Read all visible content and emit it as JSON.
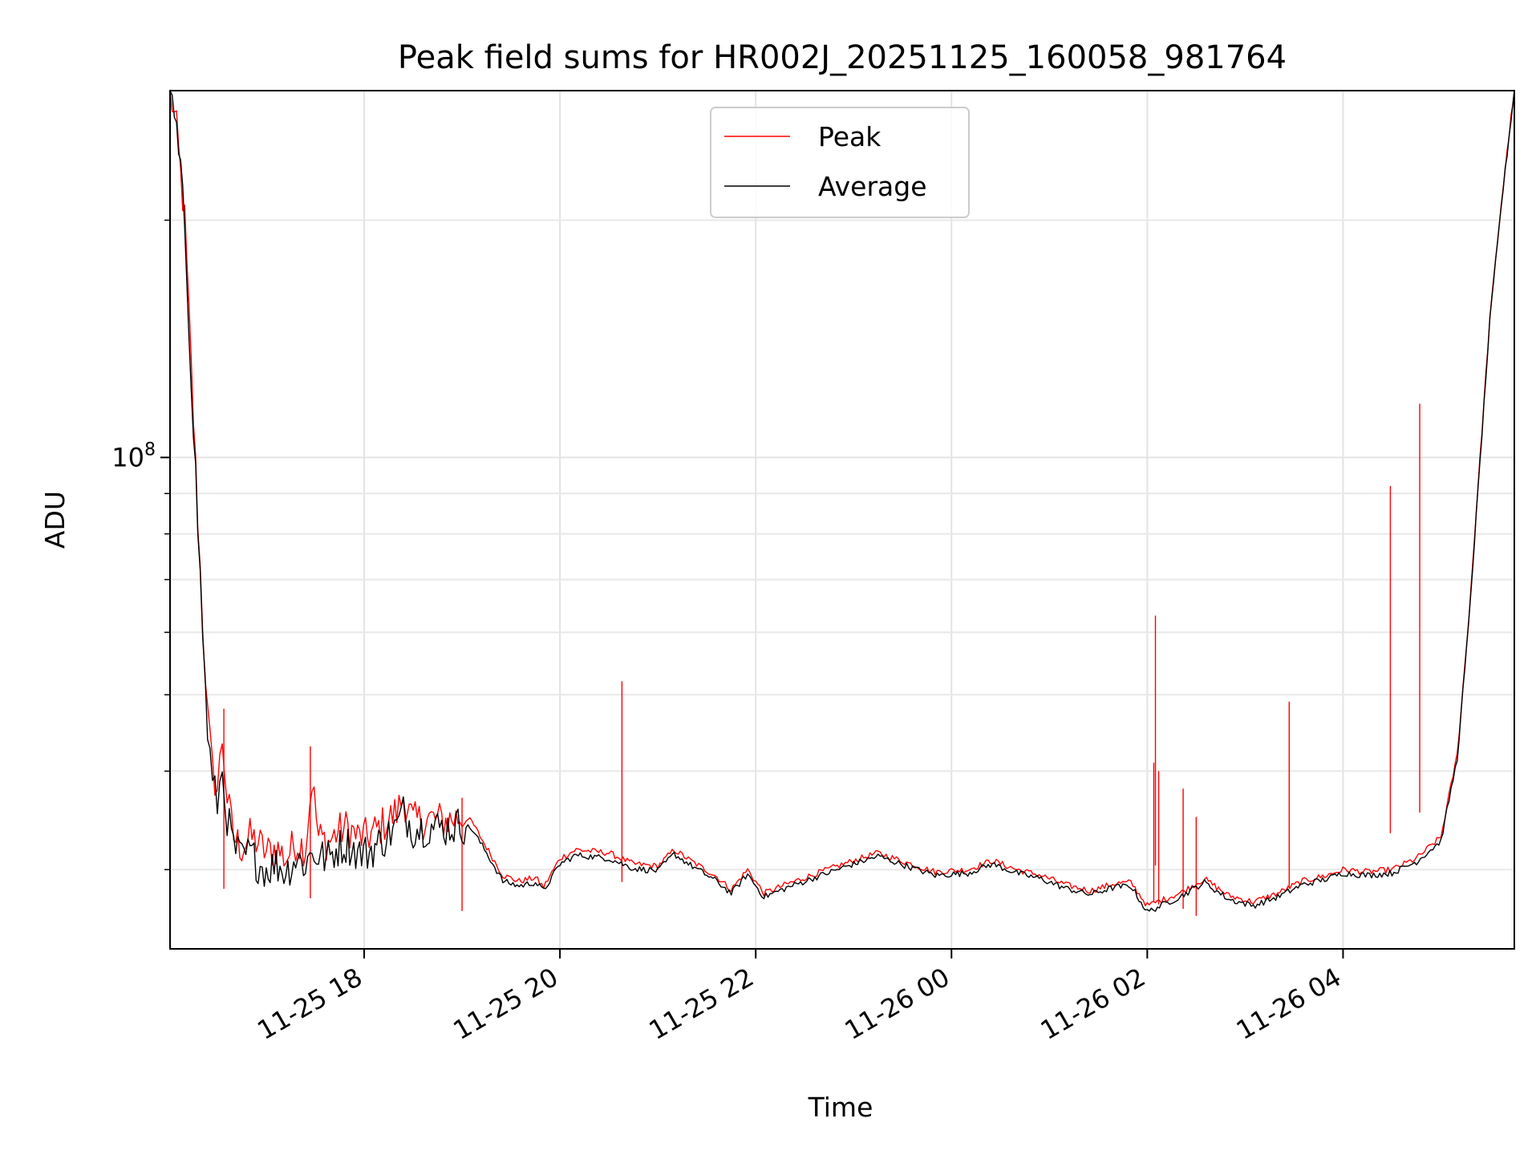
{
  "chart_data": {
    "type": "line",
    "title": "Peak field sums for HR002J_20251125_160058_981764",
    "xlabel": "Time",
    "ylabel": "ADU",
    "y_scale": "log",
    "ylim": [
      23800000,
      292000000
    ],
    "xlim": [
      "2025-11-25 16:01",
      "2025-11-26 05:45"
    ],
    "grid": true,
    "legend_position": "top-center",
    "x_ticks": [
      "11-25 18",
      "11-25 20",
      "11-25 22",
      "11-26 00",
      "11-26 02",
      "11-26 04"
    ],
    "x_tick_times": [
      "2025-11-25 18:00",
      "2025-11-25 20:00",
      "2025-11-25 22:00",
      "2025-11-26 00:00",
      "2025-11-26 02:00",
      "2025-11-26 04:00"
    ],
    "y_major_ticks": [
      {
        "value": 100000000,
        "base": "10",
        "exp": "8"
      }
    ],
    "y_minor_ticks": [
      30000000,
      40000000,
      50000000,
      60000000,
      70000000,
      80000000,
      90000000,
      200000000
    ],
    "colors": {
      "peak": "#ff0000",
      "average": "#000000"
    },
    "series": [
      {
        "name": "Peak",
        "color": "#ff0000",
        "points": [
          [
            "2025-11-25 16:01",
            292000000
          ],
          [
            "2025-11-25 16:05",
            260000000
          ],
          [
            "2025-11-25 16:10",
            200000000
          ],
          [
            "2025-11-25 16:14",
            130000000
          ],
          [
            "2025-11-25 16:18",
            84000000
          ],
          [
            "2025-11-25 16:21",
            62000000
          ],
          [
            "2025-11-25 16:24",
            47000000
          ],
          [
            "2025-11-25 16:27",
            40000000
          ],
          [
            "2025-11-25 16:30",
            38000000
          ],
          [
            "2025-11-25 16:33",
            44000000
          ],
          [
            "2025-11-25 16:36",
            37000000
          ],
          [
            "2025-11-25 16:40",
            33000000
          ],
          [
            "2025-11-25 16:45",
            32000000
          ],
          [
            "2025-11-25 16:50",
            33000000
          ],
          [
            "2025-11-25 16:55",
            32500000
          ],
          [
            "2025-11-25 17:00",
            31500000
          ],
          [
            "2025-11-25 17:06",
            32000000
          ],
          [
            "2025-11-25 17:12",
            31000000
          ],
          [
            "2025-11-25 17:18",
            32500000
          ],
          [
            "2025-11-25 17:24",
            32000000
          ],
          [
            "2025-11-25 17:28",
            39000000
          ],
          [
            "2025-11-25 17:32",
            33000000
          ],
          [
            "2025-11-25 17:38",
            32500000
          ],
          [
            "2025-11-25 17:44",
            33500000
          ],
          [
            "2025-11-25 17:50",
            34000000
          ],
          [
            "2025-11-25 17:56",
            33000000
          ],
          [
            "2025-11-25 18:02",
            33000000
          ],
          [
            "2025-11-25 18:10",
            34000000
          ],
          [
            "2025-11-25 18:20",
            35500000
          ],
          [
            "2025-11-25 18:24",
            37000000
          ],
          [
            "2025-11-25 18:30",
            34500000
          ],
          [
            "2025-11-25 18:40",
            34800000
          ],
          [
            "2025-11-25 18:50",
            34600000
          ],
          [
            "2025-11-25 19:00",
            35000000
          ],
          [
            "2025-11-25 19:06",
            34500000
          ],
          [
            "2025-11-25 19:15",
            32000000
          ],
          [
            "2025-11-25 19:25",
            29500000
          ],
          [
            "2025-11-25 19:35",
            29000000
          ],
          [
            "2025-11-25 19:45",
            29300000
          ],
          [
            "2025-11-25 19:50",
            28500000
          ],
          [
            "2025-11-25 20:00",
            31000000
          ],
          [
            "2025-11-25 20:10",
            31800000
          ],
          [
            "2025-11-25 20:30",
            31500000
          ],
          [
            "2025-11-25 20:45",
            30500000
          ],
          [
            "2025-11-25 21:00",
            30300000
          ],
          [
            "2025-11-25 21:10",
            31800000
          ],
          [
            "2025-11-25 21:20",
            30800000
          ],
          [
            "2025-11-25 21:35",
            29500000
          ],
          [
            "2025-11-25 21:45",
            28300000
          ],
          [
            "2025-11-25 21:55",
            30000000
          ],
          [
            "2025-11-25 22:05",
            28000000
          ],
          [
            "2025-11-25 22:20",
            28800000
          ],
          [
            "2025-11-25 22:40",
            29800000
          ],
          [
            "2025-11-25 23:00",
            30800000
          ],
          [
            "2025-11-25 23:15",
            31500000
          ],
          [
            "2025-11-25 23:35",
            30500000
          ],
          [
            "2025-11-25 23:50",
            29800000
          ],
          [
            "2025-11-26 00:10",
            30000000
          ],
          [
            "2025-11-26 00:25",
            30800000
          ],
          [
            "2025-11-26 00:40",
            30000000
          ],
          [
            "2025-11-26 00:55",
            29500000
          ],
          [
            "2025-11-26 01:10",
            28700000
          ],
          [
            "2025-11-26 01:25",
            28200000
          ],
          [
            "2025-11-26 01:40",
            28800000
          ],
          [
            "2025-11-26 01:50",
            28900000
          ],
          [
            "2025-11-26 02:00",
            27000000
          ],
          [
            "2025-11-26 02:20",
            28000000
          ],
          [
            "2025-11-26 02:35",
            29200000
          ],
          [
            "2025-11-26 02:50",
            27800000
          ],
          [
            "2025-11-26 03:05",
            27300000
          ],
          [
            "2025-11-26 03:20",
            28000000
          ],
          [
            "2025-11-26 03:35",
            29000000
          ],
          [
            "2025-11-26 03:50",
            29500000
          ],
          [
            "2025-11-26 04:00",
            30000000
          ],
          [
            "2025-11-26 04:15",
            29800000
          ],
          [
            "2025-11-26 04:30",
            30000000
          ],
          [
            "2025-11-26 04:45",
            31000000
          ],
          [
            "2025-11-26 05:00",
            33000000
          ],
          [
            "2025-11-26 05:10",
            42000000
          ],
          [
            "2025-11-26 05:17",
            62000000
          ],
          [
            "2025-11-26 05:24",
            100000000
          ],
          [
            "2025-11-26 05:30",
            150000000
          ],
          [
            "2025-11-26 05:37",
            210000000
          ],
          [
            "2025-11-26 05:43",
            270000000
          ],
          [
            "2025-11-26 05:45",
            292000000
          ]
        ],
        "spikes": [
          [
            "2025-11-25 16:34",
            48000000
          ],
          [
            "2025-11-25 17:27",
            43000000
          ],
          [
            "2025-11-25 19:00",
            37000000
          ],
          [
            "2025-11-25 20:38",
            52000000
          ],
          [
            "2025-11-26 02:04",
            41000000
          ],
          [
            "2025-11-26 02:05",
            63000000
          ],
          [
            "2025-11-26 02:07",
            40000000
          ],
          [
            "2025-11-26 02:22",
            38000000
          ],
          [
            "2025-11-26 02:30",
            35000000
          ],
          [
            "2025-11-26 03:27",
            49000000
          ],
          [
            "2025-11-26 04:29",
            92000000
          ],
          [
            "2025-11-26 04:47",
            117000000
          ]
        ]
      },
      {
        "name": "Average",
        "color": "#000000",
        "points": [
          [
            "2025-11-25 16:01",
            292000000
          ],
          [
            "2025-11-25 16:05",
            258000000
          ],
          [
            "2025-11-25 16:10",
            198000000
          ],
          [
            "2025-11-25 16:14",
            128000000
          ],
          [
            "2025-11-25 16:18",
            82000000
          ],
          [
            "2025-11-25 16:21",
            60000000
          ],
          [
            "2025-11-25 16:24",
            45000000
          ],
          [
            "2025-11-25 16:27",
            38500000
          ],
          [
            "2025-11-25 16:30",
            36500000
          ],
          [
            "2025-11-25 16:33",
            40000000
          ],
          [
            "2025-11-25 16:36",
            35000000
          ],
          [
            "2025-11-25 16:40",
            32000000
          ],
          [
            "2025-11-25 16:45",
            31000000
          ],
          [
            "2025-11-25 16:50",
            31500000
          ],
          [
            "2025-11-25 16:55",
            30500000
          ],
          [
            "2025-11-25 17:00",
            30000000
          ],
          [
            "2025-11-25 17:06",
            30500000
          ],
          [
            "2025-11-25 17:12",
            29800000
          ],
          [
            "2025-11-25 17:18",
            31000000
          ],
          [
            "2025-11-25 17:24",
            30500000
          ],
          [
            "2025-11-25 17:28",
            31500000
          ],
          [
            "2025-11-25 17:32",
            31200000
          ],
          [
            "2025-11-25 17:38",
            31000000
          ],
          [
            "2025-11-25 17:44",
            32000000
          ],
          [
            "2025-11-25 17:50",
            32300000
          ],
          [
            "2025-11-25 17:56",
            31500000
          ],
          [
            "2025-11-25 18:02",
            31500000
          ],
          [
            "2025-11-25 18:10",
            32500000
          ],
          [
            "2025-11-25 18:20",
            34000000
          ],
          [
            "2025-11-25 18:24",
            35500000
          ],
          [
            "2025-11-25 18:30",
            33800000
          ],
          [
            "2025-11-25 18:40",
            34000000
          ],
          [
            "2025-11-25 18:50",
            33900000
          ],
          [
            "2025-11-25 19:00",
            34200000
          ],
          [
            "2025-11-25 19:06",
            33800000
          ],
          [
            "2025-11-25 19:15",
            31500000
          ],
          [
            "2025-11-25 19:25",
            29000000
          ],
          [
            "2025-11-25 19:35",
            28600000
          ],
          [
            "2025-11-25 19:45",
            28900000
          ],
          [
            "2025-11-25 19:50",
            28200000
          ],
          [
            "2025-11-25 20:00",
            30500000
          ],
          [
            "2025-11-25 20:10",
            31300000
          ],
          [
            "2025-11-25 20:30",
            31000000
          ],
          [
            "2025-11-25 20:45",
            30100000
          ],
          [
            "2025-11-25 21:00",
            29900000
          ],
          [
            "2025-11-25 21:10",
            31400000
          ],
          [
            "2025-11-25 21:20",
            30400000
          ],
          [
            "2025-11-25 21:35",
            29100000
          ],
          [
            "2025-11-25 21:45",
            28000000
          ],
          [
            "2025-11-25 21:55",
            29600000
          ],
          [
            "2025-11-25 22:05",
            27700000
          ],
          [
            "2025-11-25 22:20",
            28500000
          ],
          [
            "2025-11-25 22:40",
            29500000
          ],
          [
            "2025-11-25 23:00",
            30500000
          ],
          [
            "2025-11-25 23:15",
            31200000
          ],
          [
            "2025-11-25 23:35",
            30200000
          ],
          [
            "2025-11-25 23:50",
            29500000
          ],
          [
            "2025-11-26 00:10",
            29700000
          ],
          [
            "2025-11-26 00:25",
            30500000
          ],
          [
            "2025-11-26 00:40",
            29700000
          ],
          [
            "2025-11-26 00:55",
            29200000
          ],
          [
            "2025-11-26 01:10",
            28400000
          ],
          [
            "2025-11-26 01:25",
            27900000
          ],
          [
            "2025-11-26 01:40",
            28500000
          ],
          [
            "2025-11-26 01:50",
            28600000
          ],
          [
            "2025-11-26 02:00",
            26500000
          ],
          [
            "2025-11-26 02:20",
            27700000
          ],
          [
            "2025-11-26 02:35",
            28900000
          ],
          [
            "2025-11-26 02:50",
            27500000
          ],
          [
            "2025-11-26 03:05",
            27000000
          ],
          [
            "2025-11-26 03:20",
            27700000
          ],
          [
            "2025-11-26 03:35",
            28700000
          ],
          [
            "2025-11-26 03:50",
            29200000
          ],
          [
            "2025-11-26 04:00",
            29700000
          ],
          [
            "2025-11-26 04:15",
            29500000
          ],
          [
            "2025-11-26 04:30",
            29700000
          ],
          [
            "2025-11-26 04:45",
            30700000
          ],
          [
            "2025-11-26 05:00",
            32600000
          ],
          [
            "2025-11-26 05:10",
            41500000
          ],
          [
            "2025-11-26 05:17",
            61500000
          ],
          [
            "2025-11-26 05:24",
            99000000
          ],
          [
            "2025-11-26 05:30",
            149000000
          ],
          [
            "2025-11-26 05:37",
            209000000
          ],
          [
            "2025-11-26 05:43",
            269000000
          ],
          [
            "2025-11-26 05:45",
            292000000
          ]
        ]
      }
    ]
  }
}
